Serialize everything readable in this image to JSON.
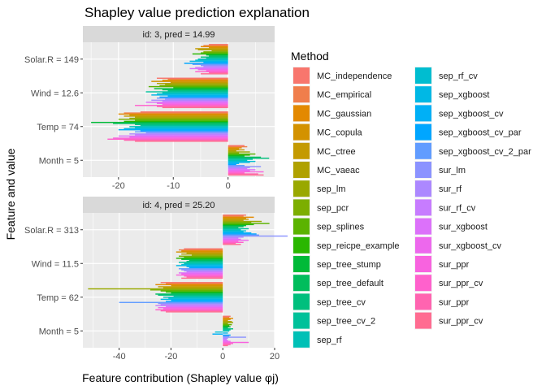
{
  "chart_data": {
    "type": "bar",
    "orientation": "horizontal",
    "title": "Shapley value prediction explanation",
    "xlabel": "Feature contribution (Shapley value φj)",
    "ylabel": "Feature and value",
    "legend": {
      "title": "Method",
      "placement": "right",
      "methods": [
        "MC_independence",
        "MC_empirical",
        "MC_gaussian",
        "MC_copula",
        "MC_ctree",
        "MC_vaeac",
        "sep_lm",
        "sep_pcr",
        "sep_splines",
        "sep_reicpe_example",
        "sep_tree_stump",
        "sep_tree_default",
        "sep_tree_cv",
        "sep_tree_cv_2",
        "sep_rf",
        "sep_rf_cv",
        "sep_xgboost",
        "sep_xgboost_cv",
        "sep_xgboost_cv_par",
        "sep_xgboost_cv_2_par",
        "sur_lm",
        "sur_rf",
        "sur_rf_cv",
        "sur_xgboost",
        "sur_xgboost_cv",
        "sur_ppr",
        "sur_ppr_cv",
        "sur_ppr",
        "sur_ppr_cv"
      ],
      "colors": [
        "#F8766D",
        "#F07E4C",
        "#E38900",
        "#D39200",
        "#C49A00",
        "#B0A100",
        "#99A800",
        "#7CAE00",
        "#5BB300",
        "#2AB700",
        "#00BA38",
        "#00BD5C",
        "#00BF7D",
        "#00C19A",
        "#00C0B6",
        "#00BDD0",
        "#00B8E5",
        "#00B0F6",
        "#00A6FF",
        "#619CFF",
        "#8B93FF",
        "#AC88FF",
        "#C77CFF",
        "#DC71FA",
        "#ED68ED",
        "#F863DF",
        "#FF61CC",
        "#FF64B0",
        "#FF6C91"
      ]
    },
    "panels": [
      {
        "strip": "id: 3, pred = 14.99",
        "xlim": [
          -26.5,
          8.5
        ],
        "xticks": [
          -20,
          -10,
          0
        ],
        "xtick_labels": [
          "-20",
          "-10",
          "0"
        ],
        "features": [
          {
            "label": "Solar.R = 149",
            "values": [
              -3.5,
              -4.5,
              -5,
              -3.5,
              -6,
              -5.5,
              -3,
              -4.5,
              -5,
              -6.5,
              -4,
              -3.5,
              -5,
              -4,
              -5.5,
              -6,
              -7,
              -4.5,
              -8,
              -6.5,
              -5,
              -4.5,
              -6,
              -7,
              -5.5,
              -4,
              -6,
              -3.5,
              -5
            ]
          },
          {
            "label": "Wind = 12.6",
            "values": [
              -13,
              -11,
              -12,
              -14,
              -10.5,
              -13,
              -11.5,
              -12.5,
              -14.5,
              -10,
              -13.5,
              -12,
              -11,
              -15,
              -12,
              -13,
              -14,
              -11,
              -12.5,
              -13,
              -11.5,
              -14,
              -12,
              -15,
              -13,
              -12,
              -17,
              -13,
              -12
            ]
          },
          {
            "label": "Temp = 74",
            "values": [
              -16,
              -19,
              -20,
              -18,
              -19,
              -17,
              -18,
              -20,
              -17,
              -19,
              -25,
              -21,
              -17,
              -16,
              -18,
              -17,
              -19,
              -20,
              -16,
              -17,
              -15,
              -18,
              -17,
              -20,
              -18,
              -21,
              -22,
              -19,
              -17
            ]
          },
          {
            "label": "Month = 5",
            "values": [
              3,
              3.5,
              2.5,
              2,
              3,
              1.5,
              4,
              2,
              5,
              4,
              3,
              6,
              7.5,
              4.5,
              3.5,
              5,
              4,
              2,
              1.5,
              3,
              6,
              4,
              3.5,
              5,
              4,
              6.5,
              3,
              5.5,
              6.5
            ]
          }
        ]
      },
      {
        "strip": "id: 4, pred = 25.20",
        "xlim": [
          -54,
          20
        ],
        "xticks": [
          -40,
          -20,
          0,
          20
        ],
        "xtick_labels": [
          "-40",
          "-20",
          "0",
          "20"
        ],
        "features": [
          {
            "label": "Solar.R = 313",
            "values": [
              9,
              8,
              12,
              9,
              10,
              8,
              15,
              11,
              18,
              12,
              9,
              8,
              6,
              10,
              7,
              9,
              8,
              11,
              13,
              14,
              25,
              8,
              6,
              7,
              10,
              6,
              8,
              5,
              7
            ]
          },
          {
            "label": "Wind = 11.5",
            "values": [
              -15,
              -17,
              -16,
              -18,
              -14,
              -16,
              -12,
              -17,
              -15,
              -18,
              -16,
              -13,
              -14,
              -17,
              -15,
              -16,
              -18,
              -14,
              -13,
              -17,
              -16,
              -15,
              -14,
              -17,
              -16,
              -18,
              -15,
              -14,
              -16
            ]
          },
          {
            "label": "Temp = 62",
            "values": [
              -24,
              -22,
              -26,
              -20,
              -25,
              -23,
              -52,
              -28,
              -24,
              -22,
              -20,
              -26,
              -25,
              -19,
              -23,
              -21,
              -24,
              -20,
              -22,
              -40,
              -25,
              -24,
              -26,
              -22,
              -25,
              -23,
              -26,
              -24,
              -22
            ]
          },
          {
            "label": "Month = 5",
            "values": [
              3,
              2.5,
              4,
              3,
              2,
              3.5,
              4,
              2,
              3.5,
              2.5,
              3,
              2,
              4,
              3,
              2.5,
              -3,
              2,
              -4,
              3,
              2.5,
              9,
              2,
              1.5,
              2,
              3,
              10,
              4,
              3,
              2
            ]
          }
        ]
      }
    ],
    "grid": true
  }
}
